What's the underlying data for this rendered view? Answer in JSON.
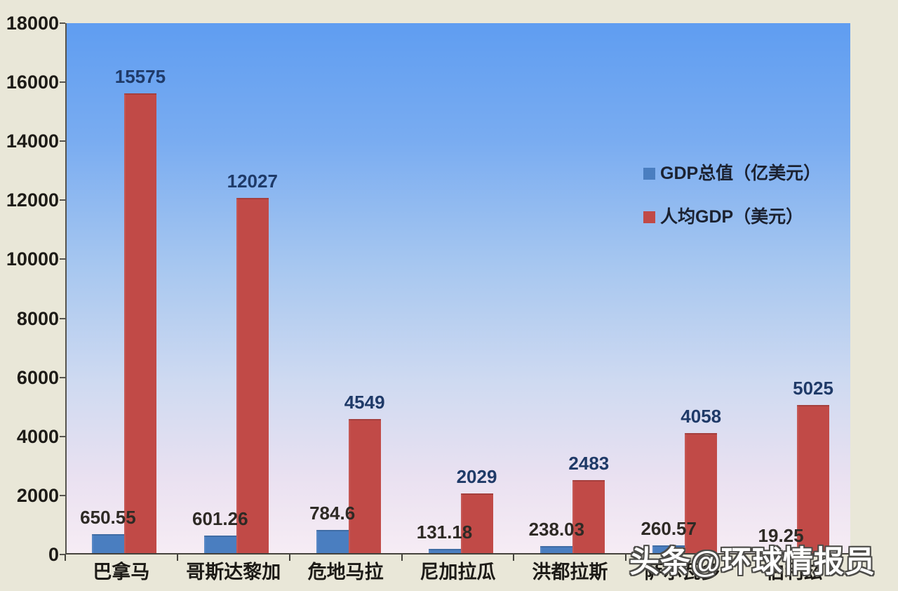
{
  "watermark": {
    "text": "头条@环球情报员"
  },
  "colors": {
    "page_background": "#e9e7d8",
    "plot_gradient_top": "#5f9df1",
    "plot_gradient_bottom": "#f6ecf4",
    "series_blue": "#4a7ec0",
    "series_red": "#c14a47",
    "label_navy": "#1f3a68",
    "label_dark": "#2e2a25",
    "axis_text": "#1d1b17"
  },
  "chart_data": {
    "type": "bar",
    "title": "",
    "xlabel": "",
    "ylabel": "",
    "categories": [
      "巴拿马",
      "哥斯达黎加",
      "危地马拉",
      "尼加拉瓜",
      "洪都拉斯",
      "萨尔瓦多",
      "伯利兹"
    ],
    "series": [
      {
        "name": "GDP总值（亿美元）",
        "color": "#4a7ec0",
        "label_color": "#2e2a25",
        "values": [
          650.55,
          601.26,
          784.6,
          131.18,
          238.03,
          260.57,
          19.25
        ]
      },
      {
        "name": "人均GDP（美元）",
        "color": "#c14a47",
        "label_color": "#1f3a68",
        "values": [
          15575,
          12027,
          4549,
          2029,
          2483,
          4058,
          5025
        ]
      }
    ],
    "ylim": [
      0,
      18000
    ],
    "ytick_step": 2000,
    "yticks": [
      0,
      2000,
      4000,
      6000,
      8000,
      10000,
      12000,
      14000,
      16000,
      18000
    ],
    "grid": false,
    "legend_position": "inside-upper-right",
    "data_labels": "outside-end"
  }
}
